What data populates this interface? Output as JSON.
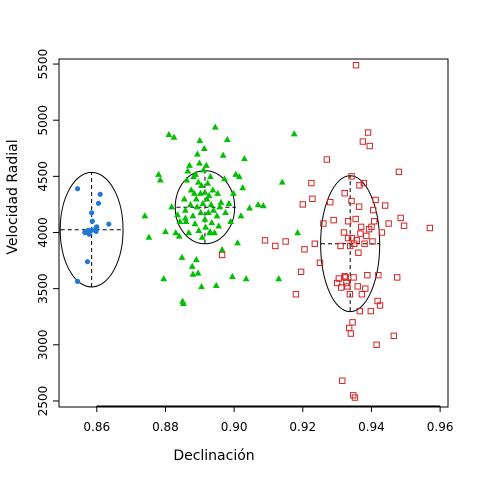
{
  "chart_data": {
    "type": "scatter",
    "title": "",
    "xlabel": "Declinación",
    "ylabel": "Velocidad Radial",
    "xlim": [
      0.849,
      0.962
    ],
    "ylim": [
      2455,
      5545
    ],
    "xticks": [
      0.86,
      0.88,
      0.9,
      0.92,
      0.94,
      0.96
    ],
    "xtick_labels": [
      "0.86",
      "0.88",
      "0.90",
      "0.92",
      "0.94",
      "0.96"
    ],
    "yticks": [
      2500,
      3000,
      3500,
      4000,
      4500,
      5000,
      5500
    ],
    "ytick_labels": [
      "2500",
      "3000",
      "3500",
      "4000",
      "4500",
      "5000",
      "5500"
    ],
    "grid": false,
    "legend": "none",
    "series": [
      {
        "marker": "circle",
        "color": "#1f78d6",
        "points": [
          [
            0.8544,
            4390
          ],
          [
            0.8544,
            3565
          ],
          [
            0.8565,
            4000
          ],
          [
            0.857,
            4002
          ],
          [
            0.8573,
            3740
          ],
          [
            0.8575,
            4019
          ],
          [
            0.8578,
            3985
          ],
          [
            0.8585,
            4175
          ],
          [
            0.8585,
            4020
          ],
          [
            0.8598,
            4040
          ],
          [
            0.8598,
            4010
          ],
          [
            0.86,
            4050
          ],
          [
            0.8605,
            4260
          ],
          [
            0.861,
            4340
          ],
          [
            0.8635,
            4075
          ],
          [
            0.8587,
            4100
          ]
        ],
        "ellipse": {
          "center": [
            0.8585,
            4025
          ],
          "x_range": [
            0.8495,
            0.8678
          ],
          "y_range": [
            3515,
            4535
          ]
        }
      },
      {
        "marker": "triangle",
        "color": "#00c000",
        "points": [
          [
            0.874,
            4150
          ],
          [
            0.8752,
            3960
          ],
          [
            0.878,
            4520
          ],
          [
            0.8785,
            4470
          ],
          [
            0.8795,
            3590
          ],
          [
            0.88,
            4010
          ],
          [
            0.881,
            4875
          ],
          [
            0.8818,
            4230
          ],
          [
            0.8825,
            4850
          ],
          [
            0.883,
            4000
          ],
          [
            0.8835,
            4160
          ],
          [
            0.884,
            3970
          ],
          [
            0.8842,
            4100
          ],
          [
            0.8848,
            3780
          ],
          [
            0.885,
            3390
          ],
          [
            0.8852,
            3370
          ],
          [
            0.8855,
            4300
          ],
          [
            0.8858,
            4200
          ],
          [
            0.886,
            4100
          ],
          [
            0.8862,
            4470
          ],
          [
            0.8865,
            4550
          ],
          [
            0.8868,
            4000
          ],
          [
            0.887,
            4600
          ],
          [
            0.8873,
            4250
          ],
          [
            0.8875,
            4380
          ],
          [
            0.8878,
            3700
          ],
          [
            0.888,
            4150
          ],
          [
            0.8882,
            4500
          ],
          [
            0.8884,
            4350
          ],
          [
            0.8886,
            4080
          ],
          [
            0.8888,
            4520
          ],
          [
            0.889,
            4300
          ],
          [
            0.8892,
            4230
          ],
          [
            0.8893,
            4700
          ],
          [
            0.8895,
            3640
          ],
          [
            0.8896,
            4450
          ],
          [
            0.8897,
            4020
          ],
          [
            0.8899,
            4620
          ],
          [
            0.89,
            4820
          ],
          [
            0.8902,
            4350
          ],
          [
            0.8903,
            4180
          ],
          [
            0.8905,
            4420
          ],
          [
            0.8907,
            3960
          ],
          [
            0.8909,
            4260
          ],
          [
            0.8911,
            4560
          ],
          [
            0.8913,
            4750
          ],
          [
            0.8915,
            4120
          ],
          [
            0.8917,
            4050
          ],
          [
            0.8919,
            4600
          ],
          [
            0.8921,
            4300
          ],
          [
            0.8923,
            4440
          ],
          [
            0.8925,
            4180
          ],
          [
            0.8927,
            4330
          ],
          [
            0.8929,
            4000
          ],
          [
            0.8931,
            4500
          ],
          [
            0.8933,
            4250
          ],
          [
            0.8935,
            4090
          ],
          [
            0.8938,
            4380
          ],
          [
            0.894,
            4200
          ],
          [
            0.8943,
            4000
          ],
          [
            0.8945,
            4940
          ],
          [
            0.8948,
            3530
          ],
          [
            0.895,
            4150
          ],
          [
            0.8952,
            4350
          ],
          [
            0.8955,
            4060
          ],
          [
            0.8958,
            4230
          ],
          [
            0.8962,
            4270
          ],
          [
            0.8965,
            3850
          ],
          [
            0.8968,
            4690
          ],
          [
            0.8972,
            4480
          ],
          [
            0.8975,
            4180
          ],
          [
            0.898,
            4830
          ],
          [
            0.8985,
            4260
          ],
          [
            0.899,
            4100
          ],
          [
            0.8995,
            3610
          ],
          [
            0.8998,
            4350
          ],
          [
            0.9005,
            4520
          ],
          [
            0.901,
            3910
          ],
          [
            0.9015,
            4500
          ],
          [
            0.902,
            4150
          ],
          [
            0.9025,
            4400
          ],
          [
            0.903,
            4660
          ],
          [
            0.9035,
            3590
          ],
          [
            0.9045,
            4220
          ],
          [
            0.907,
            4250
          ],
          [
            0.9085,
            4240
          ],
          [
            0.913,
            3590
          ],
          [
            0.914,
            4450
          ],
          [
            0.9175,
            4880
          ],
          [
            0.9185,
            4000
          ],
          [
            0.888,
            3630
          ],
          [
            0.8905,
            3520
          ],
          [
            0.8915,
            4360
          ],
          [
            0.893,
            4010
          ],
          [
            0.8858,
            4130
          ],
          [
            0.889,
            3760
          ]
        ],
        "ellipse": {
          "center": [
            0.8915,
            4225
          ],
          "x_range": [
            0.8832,
            0.9005
          ],
          "y_range": [
            3900,
            4550
          ]
        }
      },
      {
        "marker": "square",
        "color": "#d42424",
        "points": [
          [
            0.8965,
            3800
          ],
          [
            0.909,
            3930
          ],
          [
            0.912,
            3880
          ],
          [
            0.915,
            3920
          ],
          [
            0.918,
            3450
          ],
          [
            0.9195,
            3650
          ],
          [
            0.92,
            4250
          ],
          [
            0.9205,
            3850
          ],
          [
            0.9225,
            4440
          ],
          [
            0.9228,
            4300
          ],
          [
            0.9235,
            3900
          ],
          [
            0.925,
            3730
          ],
          [
            0.926,
            4080
          ],
          [
            0.927,
            4650
          ],
          [
            0.928,
            4270
          ],
          [
            0.929,
            4110
          ],
          [
            0.93,
            3550
          ],
          [
            0.9305,
            3590
          ],
          [
            0.931,
            3880
          ],
          [
            0.9312,
            3510
          ],
          [
            0.9315,
            2680
          ],
          [
            0.932,
            4000
          ],
          [
            0.9322,
            4350
          ],
          [
            0.9325,
            3600
          ],
          [
            0.9327,
            3550
          ],
          [
            0.933,
            3520
          ],
          [
            0.9332,
            4100
          ],
          [
            0.9335,
            3150
          ],
          [
            0.9337,
            3450
          ],
          [
            0.9338,
            3880
          ],
          [
            0.934,
            3100
          ],
          [
            0.9342,
            4500
          ],
          [
            0.9343,
            3950
          ],
          [
            0.9345,
            3200
          ],
          [
            0.9347,
            2550
          ],
          [
            0.9348,
            3600
          ],
          [
            0.935,
            3900
          ],
          [
            0.9352,
            2530
          ],
          [
            0.9354,
            4120
          ],
          [
            0.9355,
            5490
          ],
          [
            0.9357,
            3930
          ],
          [
            0.936,
            3520
          ],
          [
            0.9362,
            3820
          ],
          [
            0.9364,
            4230
          ],
          [
            0.9366,
            3300
          ],
          [
            0.9368,
            3990
          ],
          [
            0.937,
            4050
          ],
          [
            0.9372,
            3450
          ],
          [
            0.9375,
            4810
          ],
          [
            0.9378,
            4440
          ],
          [
            0.938,
            3900
          ],
          [
            0.9382,
            3500
          ],
          [
            0.9385,
            3970
          ],
          [
            0.9388,
            3620
          ],
          [
            0.939,
            4890
          ],
          [
            0.9393,
            4030
          ],
          [
            0.9395,
            4770
          ],
          [
            0.9398,
            3300
          ],
          [
            0.94,
            4050
          ],
          [
            0.9403,
            3920
          ],
          [
            0.9405,
            4200
          ],
          [
            0.9408,
            4100
          ],
          [
            0.9412,
            4290
          ],
          [
            0.9415,
            3000
          ],
          [
            0.9418,
            3390
          ],
          [
            0.942,
            3620
          ],
          [
            0.9425,
            3350
          ],
          [
            0.943,
            4000
          ],
          [
            0.944,
            4240
          ],
          [
            0.945,
            4080
          ],
          [
            0.9465,
            3080
          ],
          [
            0.9475,
            3600
          ],
          [
            0.948,
            4540
          ],
          [
            0.9485,
            4130
          ],
          [
            0.9495,
            4060
          ],
          [
            0.957,
            4040
          ],
          [
            0.9332,
            3950
          ],
          [
            0.9365,
            4420
          ],
          [
            0.9342,
            4280
          ],
          [
            0.9322,
            3610
          ]
        ],
        "ellipse": {
          "center": [
            0.9338,
            3900
          ],
          "x_range": [
            0.9253,
            0.9425
          ],
          "y_range": [
            3300,
            4510
          ]
        }
      }
    ]
  }
}
